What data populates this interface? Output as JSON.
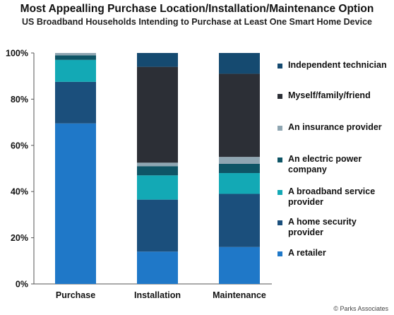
{
  "chart_data": {
    "type": "bar",
    "stacked": true,
    "title": "Most Appealling Purchase Location/Installation/Maintenance Option",
    "subtitle": "US Broadband Households Intending to Purchase at Least One Smart Home Device",
    "categories": [
      "Purchase",
      "Installation",
      "Maintenance"
    ],
    "ylim": [
      0,
      100
    ],
    "yticks": [
      "0%",
      "20%",
      "40%",
      "60%",
      "80%",
      "100%"
    ],
    "legend_position": "right",
    "series": [
      {
        "name": "A retailer",
        "color": "#1f78c8",
        "values": [
          69.5,
          14,
          16
        ]
      },
      {
        "name": "A home security provider",
        "color": "#1b4f7c",
        "values": [
          18,
          22.5,
          23
        ]
      },
      {
        "name": "A broadband service provider",
        "color": "#13a9b5",
        "values": [
          9.5,
          10.5,
          9
        ]
      },
      {
        "name": "An electric power company",
        "color": "#0e5566",
        "values": [
          2,
          4,
          4
        ]
      },
      {
        "name": "An insurance provider",
        "color": "#8fa6b2",
        "values": [
          1,
          1.5,
          3
        ]
      },
      {
        "name": "Myself/family/friend",
        "color": "#2c2f36",
        "values": [
          0,
          41.5,
          36
        ]
      },
      {
        "name": "Independent technician",
        "color": "#154a70",
        "values": [
          0,
          6,
          9
        ]
      }
    ],
    "legend_lines": [
      [
        "Independent technician"
      ],
      [
        "Myself/family/friend"
      ],
      [
        "An insurance provider"
      ],
      [
        "An electric power",
        "company"
      ],
      [
        "A broadband service",
        "provider"
      ],
      [
        "A home security",
        "provider"
      ],
      [
        "A retailer"
      ]
    ]
  },
  "watermark": "© Parks Associates"
}
